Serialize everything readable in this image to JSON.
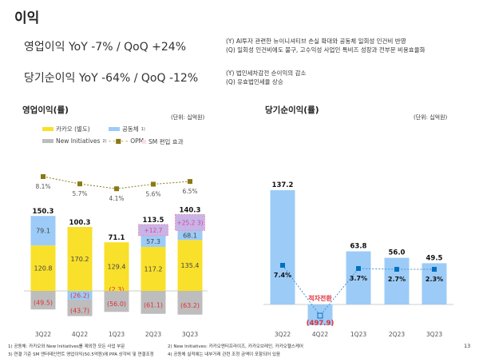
{
  "page_title": "이익",
  "headlines": [
    {
      "text": "영업이익 YoY -7% / QoQ +24%",
      "notes": [
        "(Y) AI투자 관련한 뉴이니셔티브 손실 확대와 공동체 일회성 인건비 반영",
        "(Q) 일회성 인건비에도 불구, 고수익성 사업인 톡비즈 성장과 전부문 비용효율화"
      ]
    },
    {
      "text": "당기순이익 YoY -64% / QoQ -12%",
      "notes": [
        "(Y) 법인세차감전 순이익의 감소",
        "(Q) 유효법인세율 상승"
      ]
    }
  ],
  "op_chart": {
    "title": "영업이익(률)",
    "unit": "(단위: 십억원)",
    "legend": {
      "kakao": "카카오 (별도)",
      "affiliates": "공동체",
      "affiliates_sup": "1)",
      "new_init": "New Initiatives",
      "new_init_sup": "2)",
      "opm": "OPM",
      "sm": "SM 편입 효과"
    },
    "colors": {
      "kakao": "#f9e02a",
      "affiliates": "#9ccbf7",
      "new_init": "#bdbdbd",
      "opm": "#8a7a12",
      "sm": "#c8b4e6",
      "negative_label": "#e0303a"
    },
    "chart_data": {
      "type": "bar",
      "categories": [
        "3Q22",
        "4Q22",
        "1Q23",
        "2Q23",
        "3Q23"
      ],
      "totals": [
        "150.3",
        "100.3",
        "71.1",
        "113.5",
        "140.3"
      ],
      "kakao": [
        "120.8",
        "170.2",
        "129.4",
        "117.2",
        "135.4"
      ],
      "affiliates": [
        "79.1",
        "(26.2)",
        "(2.3)",
        "57.3",
        "68.1"
      ],
      "new_initiatives": [
        "(49.5)",
        "(43.7)",
        "(56.0)",
        "(61.1)",
        "(63.2)"
      ],
      "sm_effect": [
        "",
        "",
        "",
        "+12.7",
        "+25.2"
      ],
      "sm_effect_sup": [
        "",
        "",
        "",
        "",
        "3)"
      ],
      "opm": [
        "8.1%",
        "5.7%",
        "4.1%",
        "5.6%",
        "6.5%"
      ]
    }
  },
  "ni_chart": {
    "title": "당기순이익(률)",
    "unit": "(단위: 십억원)",
    "colors": {
      "bar": "#9ccbf7",
      "marker": "#0070c0"
    },
    "chart_data": {
      "type": "bar",
      "categories": [
        "3Q22",
        "4Q22",
        "1Q23",
        "2Q23",
        "3Q23"
      ],
      "values": [
        "137.2",
        "(497.9)",
        "63.8",
        "56.0",
        "49.5"
      ],
      "margin": [
        "7.4%",
        "",
        "3.7%",
        "2.7%",
        "2.3%"
      ],
      "annotation": "적자전환"
    }
  },
  "footnotes": [
    "1)  공동체: 카카오와 New Initiatives를 제외한 모든 사업 부문",
    "2)  New Initiatives: 카카오엔터프라이즈, 카카오브레인, 카카오헬스케어",
    "3)  연결 기준 SM 엔터테인먼트 영업이익(50.5억원)에 PPA 상각비 및 연결조정",
    "4)  공동체 실적에는 내부거래 관련 조정 금액이 포함되어 있음"
  ],
  "page_number": "13"
}
